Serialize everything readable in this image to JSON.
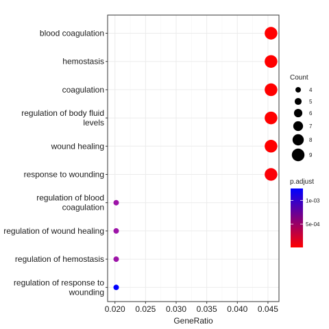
{
  "chart_data": {
    "type": "scatter",
    "xlabel": "GeneRatio",
    "ylabel": "",
    "xlim": [
      0.0188,
      0.0468
    ],
    "x_ticks": [
      "0.020",
      "0.025",
      "0.030",
      "0.035",
      "0.040",
      "0.045"
    ],
    "grid": true,
    "categories": [
      [
        "blood coagulation"
      ],
      [
        "hemostasis"
      ],
      [
        "coagulation"
      ],
      [
        "regulation of body fluid",
        "levels"
      ],
      [
        "wound healing"
      ],
      [
        "response to wounding"
      ],
      [
        "regulation of blood",
        "coagulation"
      ],
      [
        "regulation of wound healing"
      ],
      [
        "regulation of hemostasis"
      ],
      [
        "regulation of response to",
        "wounding"
      ]
    ],
    "points": [
      {
        "term": "blood coagulation",
        "gene_ratio": 0.0455,
        "count": 9,
        "p_adjust": 1e-05,
        "color": "#ff0000"
      },
      {
        "term": "hemostasis",
        "gene_ratio": 0.0455,
        "count": 9,
        "p_adjust": 1e-05,
        "color": "#ff0000"
      },
      {
        "term": "coagulation",
        "gene_ratio": 0.0455,
        "count": 9,
        "p_adjust": 1e-05,
        "color": "#ff0000"
      },
      {
        "term": "regulation of body fluid levels",
        "gene_ratio": 0.0455,
        "count": 9,
        "p_adjust": 1e-05,
        "color": "#ff0000"
      },
      {
        "term": "wound healing",
        "gene_ratio": 0.0455,
        "count": 9,
        "p_adjust": 1e-05,
        "color": "#ff0000"
      },
      {
        "term": "response to wounding",
        "gene_ratio": 0.0455,
        "count": 9,
        "p_adjust": 2e-05,
        "color": "#fb0008"
      },
      {
        "term": "regulation of blood coagulation",
        "gene_ratio": 0.0202,
        "count": 4,
        "p_adjust": 0.00072,
        "color": "#9d14a8"
      },
      {
        "term": "regulation of wound healing",
        "gene_ratio": 0.0202,
        "count": 4,
        "p_adjust": 0.00072,
        "color": "#9d14a8"
      },
      {
        "term": "regulation of hemostasis",
        "gene_ratio": 0.0202,
        "count": 4,
        "p_adjust": 0.00072,
        "color": "#9d14a8"
      },
      {
        "term": "regulation of response to wounding",
        "gene_ratio": 0.0202,
        "count": 4,
        "p_adjust": 0.00125,
        "color": "#0000ff"
      }
    ],
    "size_legend": {
      "title": "Count",
      "entries": [
        {
          "label": "4",
          "value": 4
        },
        {
          "label": "5",
          "value": 5
        },
        {
          "label": "6",
          "value": 6
        },
        {
          "label": "7",
          "value": 7
        },
        {
          "label": "8",
          "value": 8
        },
        {
          "label": "9",
          "value": 9
        }
      ],
      "color": "#000000"
    },
    "color_legend": {
      "title": "p.adjust",
      "labels": [
        "1e-03",
        "5e-04"
      ],
      "label_values": [
        0.001,
        0.0005
      ],
      "range": [
        1e-05,
        0.00125
      ],
      "low_color": "#ff0000",
      "high_color": "#0000ff"
    }
  }
}
